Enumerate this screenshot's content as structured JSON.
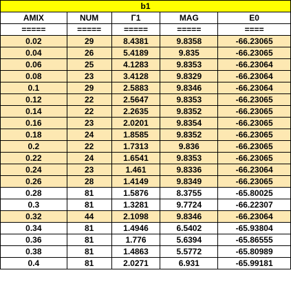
{
  "sheet_title": "b1",
  "headers": [
    "AMIX",
    "NUM",
    "Γ1",
    "MAG",
    "E0"
  ],
  "separators": [
    "=====",
    "=====",
    "=====",
    "=====",
    "===="
  ],
  "row_highlight_color": "#fde8b2",
  "title_color": "#ffff00",
  "rows": [
    {
      "amix": "0.02",
      "num": "29",
      "gamma": "8.4381",
      "mag": "9.8358",
      "e0": "-66.23065",
      "hl": true
    },
    {
      "amix": "0.04",
      "num": "26",
      "gamma": "5.4189",
      "mag": "9.835",
      "e0": "-66.23065",
      "hl": true
    },
    {
      "amix": "0.06",
      "num": "25",
      "gamma": "4.1283",
      "mag": "9.8353",
      "e0": "-66.23064",
      "hl": true
    },
    {
      "amix": "0.08",
      "num": "23",
      "gamma": "3.4128",
      "mag": "9.8329",
      "e0": "-66.23064",
      "hl": true
    },
    {
      "amix": "0.1",
      "num": "29",
      "gamma": "2.5883",
      "mag": "9.8346",
      "e0": "-66.23064",
      "hl": true
    },
    {
      "amix": "0.12",
      "num": "22",
      "gamma": "2.5647",
      "mag": "9.8353",
      "e0": "-66.23065",
      "hl": true
    },
    {
      "amix": "0.14",
      "num": "22",
      "gamma": "2.2635",
      "mag": "9.8352",
      "e0": "-66.23065",
      "hl": true
    },
    {
      "amix": "0.16",
      "num": "23",
      "gamma": "2.0201",
      "mag": "9.8354",
      "e0": "-66.23065",
      "hl": true
    },
    {
      "amix": "0.18",
      "num": "24",
      "gamma": "1.8585",
      "mag": "9.8352",
      "e0": "-66.23065",
      "hl": true
    },
    {
      "amix": "0.2",
      "num": "22",
      "gamma": "1.7313",
      "mag": "9.836",
      "e0": "-66.23065",
      "hl": true
    },
    {
      "amix": "0.22",
      "num": "24",
      "gamma": "1.6541",
      "mag": "9.8353",
      "e0": "-66.23065",
      "hl": true
    },
    {
      "amix": "0.24",
      "num": "23",
      "gamma": "1.461",
      "mag": "9.8336",
      "e0": "-66.23064",
      "hl": true
    },
    {
      "amix": "0.26",
      "num": "28",
      "gamma": "1.4149",
      "mag": "9.8349",
      "e0": "-66.23065",
      "hl": true
    },
    {
      "amix": "0.28",
      "num": "81",
      "gamma": "1.5876",
      "mag": "8.3755",
      "e0": "-65.80025",
      "hl": false
    },
    {
      "amix": "0.3",
      "num": "81",
      "gamma": "1.3281",
      "mag": "9.7724",
      "e0": "-66.22307",
      "hl": false
    },
    {
      "amix": "0.32",
      "num": "44",
      "gamma": "2.1098",
      "mag": "9.8346",
      "e0": "-66.23064",
      "hl": true
    },
    {
      "amix": "0.34",
      "num": "81",
      "gamma": "1.4946",
      "mag": "6.5402",
      "e0": "-65.93804",
      "hl": false
    },
    {
      "amix": "0.36",
      "num": "81",
      "gamma": "1.776",
      "mag": "5.6394",
      "e0": "-65.86555",
      "hl": false
    },
    {
      "amix": "0.38",
      "num": "81",
      "gamma": "1.4863",
      "mag": "5.5772",
      "e0": "-65.80989",
      "hl": false
    },
    {
      "amix": "0.4",
      "num": "81",
      "gamma": "2.0271",
      "mag": "6.931",
      "e0": "-65.99181",
      "hl": false
    }
  ]
}
